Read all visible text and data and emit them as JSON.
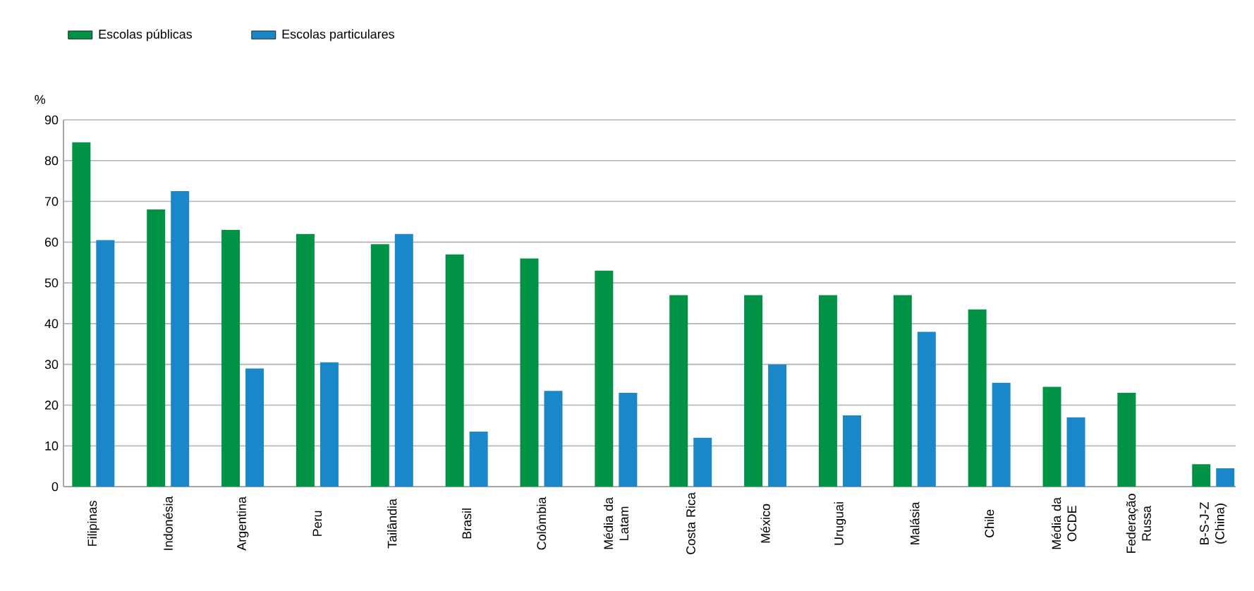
{
  "chart_data": {
    "type": "bar",
    "ylabel": "%",
    "categories": [
      "Filipinas",
      "Indonésia",
      "Argentina",
      "Peru",
      "Tailândia",
      "Brasil",
      "Colômbia",
      "Média da Latam",
      "Costa Rica",
      "México",
      "Uruguai",
      "Malásia",
      "Chile",
      "Média da OCDE",
      "Federação Russa",
      "B-S-J-Z (China)"
    ],
    "series": [
      {
        "name": "Escolas públicas",
        "color": "#009245",
        "values": [
          84.5,
          68,
          63,
          62,
          59.5,
          57,
          56,
          53,
          47,
          47,
          47,
          47,
          43.5,
          24.5,
          23,
          5.5
        ]
      },
      {
        "name": "Escolas particulares",
        "color": "#1a87c9",
        "values": [
          60.5,
          72.5,
          29,
          30.5,
          62,
          13.5,
          23.5,
          23,
          12,
          30,
          17.5,
          38,
          25.5,
          17,
          null,
          4.5
        ]
      }
    ],
    "ylim": [
      0,
      90
    ],
    "yticks": [
      0,
      10,
      20,
      30,
      40,
      50,
      60,
      70,
      80,
      90
    ],
    "grid": "y",
    "legend": "top left"
  }
}
